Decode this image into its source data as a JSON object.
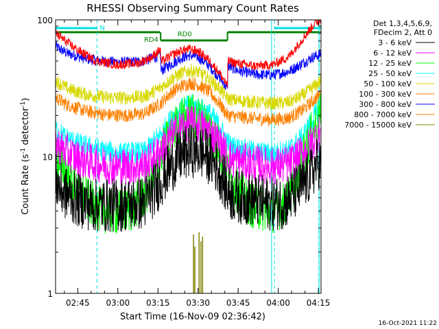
{
  "chart_data": {
    "type": "line",
    "title": "RHESSI Observing Summary Count Rates",
    "xlabel": "Start Time (16-Nov-09 02:36:42)",
    "ylabel_main": "Count Rate (s",
    "ylabel_sup1": "-1",
    "ylabel_mid": " detector",
    "ylabel_sup2": "-1",
    "ylabel_end": ")",
    "xlim_min": [
      156.7,
      256
    ],
    "ylim": [
      1,
      100
    ],
    "y_scale": "log",
    "y_ticks": [
      {
        "v": 1,
        "label": "1"
      },
      {
        "v": 10,
        "label": "10"
      },
      {
        "v": 100,
        "label": "100"
      }
    ],
    "x_ticks": [
      {
        "v": 165,
        "label": "02:45"
      },
      {
        "v": 180,
        "label": "03:00"
      },
      {
        "v": 195,
        "label": "03:15"
      },
      {
        "v": 210,
        "label": "03:30"
      },
      {
        "v": 225,
        "label": "03:45"
      },
      {
        "v": 240,
        "label": "04:00"
      },
      {
        "v": 255,
        "label": "04:15"
      }
    ],
    "legend_header": [
      "Det 1,3,4,5,6,9,",
      "FDecim 2, Att 0"
    ],
    "legend_placement": "right",
    "series": [
      {
        "name": "3 - 6 keV",
        "color": "#000000",
        "knots": [
          [
            156.7,
            6.8
          ],
          [
            159,
            5.6
          ],
          [
            165,
            4.8
          ],
          [
            171,
            4.4
          ],
          [
            180,
            4.4
          ],
          [
            190,
            4.6
          ],
          [
            196,
            6.6
          ],
          [
            200,
            8.6
          ],
          [
            204,
            10.2
          ],
          [
            207,
            11
          ],
          [
            210,
            11
          ],
          [
            213,
            10.3
          ],
          [
            216,
            9
          ],
          [
            219,
            7.2
          ],
          [
            221,
            5.6
          ],
          [
            223,
            5.2
          ],
          [
            231,
            4.8
          ],
          [
            238,
            4.5
          ],
          [
            243,
            4.7
          ],
          [
            248,
            5.8
          ],
          [
            252,
            7.2
          ],
          [
            254,
            8.6
          ],
          [
            256,
            9.2
          ]
        ],
        "noise": 0.2
      },
      {
        "name": "6 - 12 keV",
        "color": "#ff00ff",
        "knots": [
          [
            156.7,
            12.5
          ],
          [
            160,
            11
          ],
          [
            165,
            9.7
          ],
          [
            172,
            8.9
          ],
          [
            180,
            8.4
          ],
          [
            190,
            8.6
          ],
          [
            196,
            11
          ],
          [
            200,
            14
          ],
          [
            204,
            16.5
          ],
          [
            207,
            17.5
          ],
          [
            210,
            17
          ],
          [
            214,
            15.5
          ],
          [
            218,
            12.5
          ],
          [
            221,
            10.2
          ],
          [
            223,
            9.4
          ],
          [
            231,
            8.9
          ],
          [
            238,
            8.5
          ],
          [
            244,
            8.8
          ],
          [
            249,
            10.5
          ],
          [
            253,
            13
          ],
          [
            256,
            15.5
          ]
        ],
        "noise": 0.14
      },
      {
        "name": "12 - 25 keV",
        "color": "#00ff00",
        "knots": [
          [
            156.7,
            10
          ],
          [
            159,
            8.8
          ],
          [
            163,
            6.6
          ],
          [
            168,
            4.9
          ],
          [
            173,
            4.1
          ],
          [
            180,
            3.9
          ],
          [
            186,
            4.2
          ],
          [
            192,
            6
          ],
          [
            196,
            10
          ],
          [
            200,
            15
          ],
          [
            204,
            18.5
          ],
          [
            207,
            20
          ],
          [
            210,
            19.2
          ],
          [
            214,
            16.5
          ],
          [
            218,
            11.8
          ],
          [
            221,
            8
          ],
          [
            223,
            6.2
          ],
          [
            230,
            4.4
          ],
          [
            237,
            4
          ],
          [
            242,
            4.4
          ],
          [
            246,
            6.5
          ],
          [
            250,
            11
          ],
          [
            253,
            15.5
          ],
          [
            256,
            20
          ]
        ],
        "noise": 0.17
      },
      {
        "name": "25 - 50 keV",
        "color": "#00ffff",
        "knots": [
          [
            156.7,
            16
          ],
          [
            160,
            14
          ],
          [
            165,
            12.5
          ],
          [
            172,
            11.3
          ],
          [
            180,
            10.6
          ],
          [
            190,
            10.8
          ],
          [
            196,
            14.5
          ],
          [
            200,
            19
          ],
          [
            204,
            22.5
          ],
          [
            207,
            24
          ],
          [
            210,
            23.2
          ],
          [
            214,
            21
          ],
          [
            218,
            16.8
          ],
          [
            221,
            12.8
          ],
          [
            223,
            11.8
          ],
          [
            231,
            10.9
          ],
          [
            238,
            10.5
          ],
          [
            244,
            11.2
          ],
          [
            249,
            14
          ],
          [
            253,
            19
          ],
          [
            256,
            24
          ]
        ],
        "noise": 0.08
      },
      {
        "name": "50 - 100 keV",
        "color": "#d8d800",
        "knots": [
          [
            156.7,
            36
          ],
          [
            161,
            31.5
          ],
          [
            168,
            28.5
          ],
          [
            176,
            27
          ],
          [
            183,
            27
          ],
          [
            190,
            27.5
          ],
          [
            196,
            32
          ],
          [
            200,
            37
          ],
          [
            204,
            41
          ],
          [
            207,
            42.5
          ],
          [
            210,
            41.5
          ],
          [
            214,
            37
          ],
          [
            218,
            31.5
          ],
          [
            221,
            26.5
          ],
          [
            223,
            26
          ],
          [
            231,
            25
          ],
          [
            238,
            24.5
          ],
          [
            244,
            25
          ],
          [
            249,
            28
          ],
          [
            253,
            32
          ],
          [
            256,
            36
          ]
        ],
        "noise": 0.05
      },
      {
        "name": "100 - 300 keV",
        "color": "#ff8000",
        "knots": [
          [
            156.7,
            27
          ],
          [
            161,
            24
          ],
          [
            168,
            21.5
          ],
          [
            176,
            20.2
          ],
          [
            183,
            20
          ],
          [
            190,
            20.6
          ],
          [
            196,
            24.5
          ],
          [
            200,
            29.5
          ],
          [
            204,
            33
          ],
          [
            207,
            34.5
          ],
          [
            210,
            33.5
          ],
          [
            214,
            30
          ],
          [
            218,
            24.5
          ],
          [
            221,
            20
          ],
          [
            223,
            19.8
          ],
          [
            231,
            19
          ],
          [
            238,
            18.6
          ],
          [
            244,
            19.2
          ],
          [
            249,
            21.8
          ],
          [
            253,
            25.5
          ],
          [
            256,
            29
          ]
        ],
        "noise": 0.05
      },
      {
        "name": "300 - 800 keV",
        "color": "#0000ff",
        "knots": [
          [
            156.7,
            64
          ],
          [
            161,
            57
          ],
          [
            168,
            52
          ],
          [
            176,
            49.5
          ],
          [
            183,
            49
          ],
          [
            189,
            49.8
          ],
          [
            194,
            53
          ],
          [
            196,
            56
          ],
          [
            196.1,
            42.5
          ],
          [
            200,
            47.5
          ],
          [
            204,
            53
          ],
          [
            207,
            55
          ],
          [
            210,
            53.5
          ],
          [
            214,
            46.5
          ],
          [
            218,
            38
          ],
          [
            220,
            33.5
          ],
          [
            221,
            31
          ],
          [
            221.1,
            46
          ],
          [
            225,
            42.5
          ],
          [
            231,
            40
          ],
          [
            238,
            39.5
          ],
          [
            244,
            42
          ],
          [
            249,
            48
          ],
          [
            253,
            53.5
          ],
          [
            256,
            56
          ]
        ],
        "noise": 0.04
      },
      {
        "name": "800 - 7000 keV",
        "color": "#ff8000",
        "knots": [],
        "noise": 0
      },
      {
        "name": "7000 - 15000 keV",
        "color": "#808000",
        "knots": [],
        "noise": 0
      }
    ],
    "red_series": {
      "knots": [
        [
          156.7,
          80
        ],
        [
          160,
          71
        ],
        [
          165,
          60
        ],
        [
          172,
          50
        ],
        [
          180,
          47
        ],
        [
          188,
          48.5
        ],
        [
          193,
          54
        ],
        [
          196,
          61
        ],
        [
          196.1,
          49
        ],
        [
          200,
          55
        ],
        [
          204,
          60
        ],
        [
          207,
          61
        ],
        [
          210,
          59
        ],
        [
          214,
          51
        ],
        [
          218,
          41
        ],
        [
          220,
          35.5
        ],
        [
          221,
          32
        ],
        [
          221.1,
          50
        ],
        [
          225,
          48
        ],
        [
          231,
          46
        ],
        [
          238,
          47
        ],
        [
          244,
          54
        ],
        [
          248,
          68
        ],
        [
          252,
          86
        ],
        [
          254,
          96
        ],
        [
          256,
          100
        ]
      ],
      "noise": 0.035,
      "color": "#ff0000"
    },
    "spikes_7000": [
      [
        208.3,
        2.7
      ],
      [
        208.8,
        2.2
      ],
      [
        210.4,
        2.8
      ],
      [
        211.1,
        2.4
      ],
      [
        211.7,
        2.6
      ]
    ],
    "attenuator_bars": {
      "top_label": "RD0",
      "top_label_2": "RD4",
      "night_label": "N",
      "segments_green_low": [
        [
          156.7,
          195.8
        ]
      ],
      "segments_green_high": [
        [
          196,
          221
        ],
        [
          221,
          256
        ]
      ],
      "segments_cyan": [
        [
          156.7,
          172.2
        ],
        [
          238.5,
          256
        ]
      ]
    },
    "vlines_solid": [
      237.5,
      255.3
    ],
    "vlines_dashed": [
      172.2,
      255.2,
      238.6
    ],
    "vline_left": 156.7
  },
  "timestamp": "16-Oct-2021 11:22"
}
